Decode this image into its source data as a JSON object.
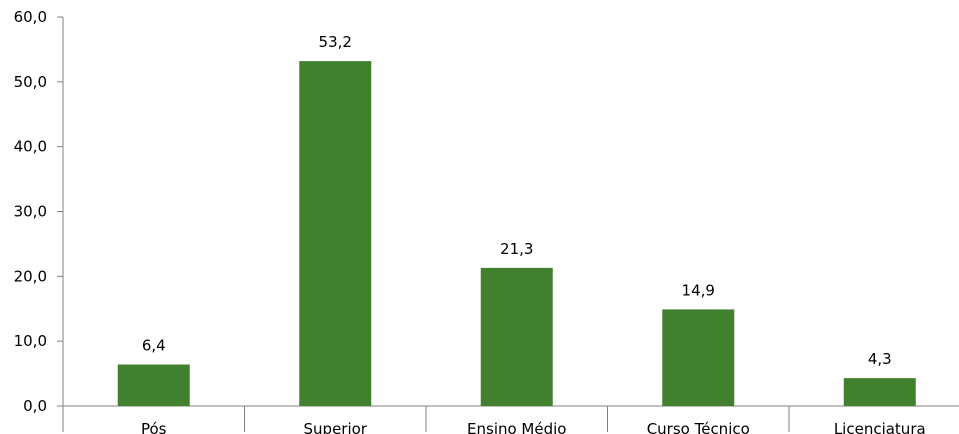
{
  "chart_data": {
    "type": "bar",
    "categories": [
      "Pós",
      "Superior",
      "Ensino Médio",
      "Curso Técnico",
      "Licenciatura"
    ],
    "values": [
      6.4,
      53.2,
      21.3,
      14.9,
      4.3
    ],
    "data_labels": [
      "6,4",
      "53,2",
      "21,3",
      "14,9",
      "4,3"
    ],
    "y_ticks": [
      0,
      10,
      20,
      30,
      40,
      50,
      60
    ],
    "y_tick_labels": [
      "0,0",
      "10,0",
      "20,0",
      "30,0",
      "40,0",
      "50,0",
      "60,0"
    ],
    "ylim": [
      0,
      60
    ],
    "title": "",
    "xlabel": "",
    "ylabel": "",
    "grid": false,
    "legend": "none",
    "bar_color": "#41802F"
  }
}
